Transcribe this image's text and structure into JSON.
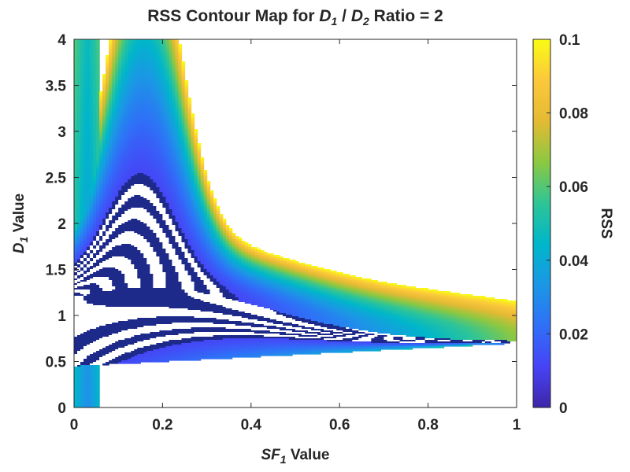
{
  "chart_data": {
    "type": "contour",
    "title": {
      "prefix": "RSS Contour Map for ",
      "var1": "D",
      "sub1": "1",
      "sep": " / ",
      "var2": "D",
      "sub2": "2",
      "suffix": " Ratio = 2"
    },
    "xlabel": {
      "var": "SF",
      "sub": "1",
      "suffix": " Value"
    },
    "ylabel": {
      "var": "D",
      "sub": "1",
      "suffix": "  Value"
    },
    "xlim": [
      0,
      1
    ],
    "ylim": [
      0,
      4
    ],
    "xticks": [
      0,
      0.2,
      0.4,
      0.6,
      0.8,
      1
    ],
    "xtick_labels": [
      "0",
      "0.2",
      "0.4",
      "0.6",
      "0.8",
      "1"
    ],
    "yticks": [
      0,
      0.5,
      1,
      1.5,
      2,
      2.5,
      3,
      3.5,
      4
    ],
    "ytick_labels": [
      "0",
      "0.5",
      "1",
      "1.5",
      "2",
      "2.5",
      "3",
      "3.5",
      "4"
    ],
    "colorbar": {
      "label": "RSS",
      "range": [
        0,
        0.1
      ],
      "ticks": [
        0,
        0.02,
        0.04,
        0.06,
        0.08,
        0.1
      ],
      "tick_labels": [
        "0",
        "0.02",
        "0.04",
        "0.06",
        "0.08",
        "0.1"
      ],
      "colormap": "parula",
      "colors": [
        "#3e26a8",
        "#4743f6",
        "#2f70f8",
        "#1b97e5",
        "#00b6ca",
        "#2ec597",
        "#8cc841",
        "#e4ba33",
        "#fcc83b",
        "#f9fb15"
      ]
    },
    "min_location": {
      "x": 1,
      "y": 0.7
    },
    "surface_features": [
      "upper-right region beyond the contour range is blank (RSS > 0.1)",
      "lower region below the valley is blank (RSS > 0.1)",
      "low-RSS valley curves from the upper-left toward (1, 0.7)"
    ]
  }
}
